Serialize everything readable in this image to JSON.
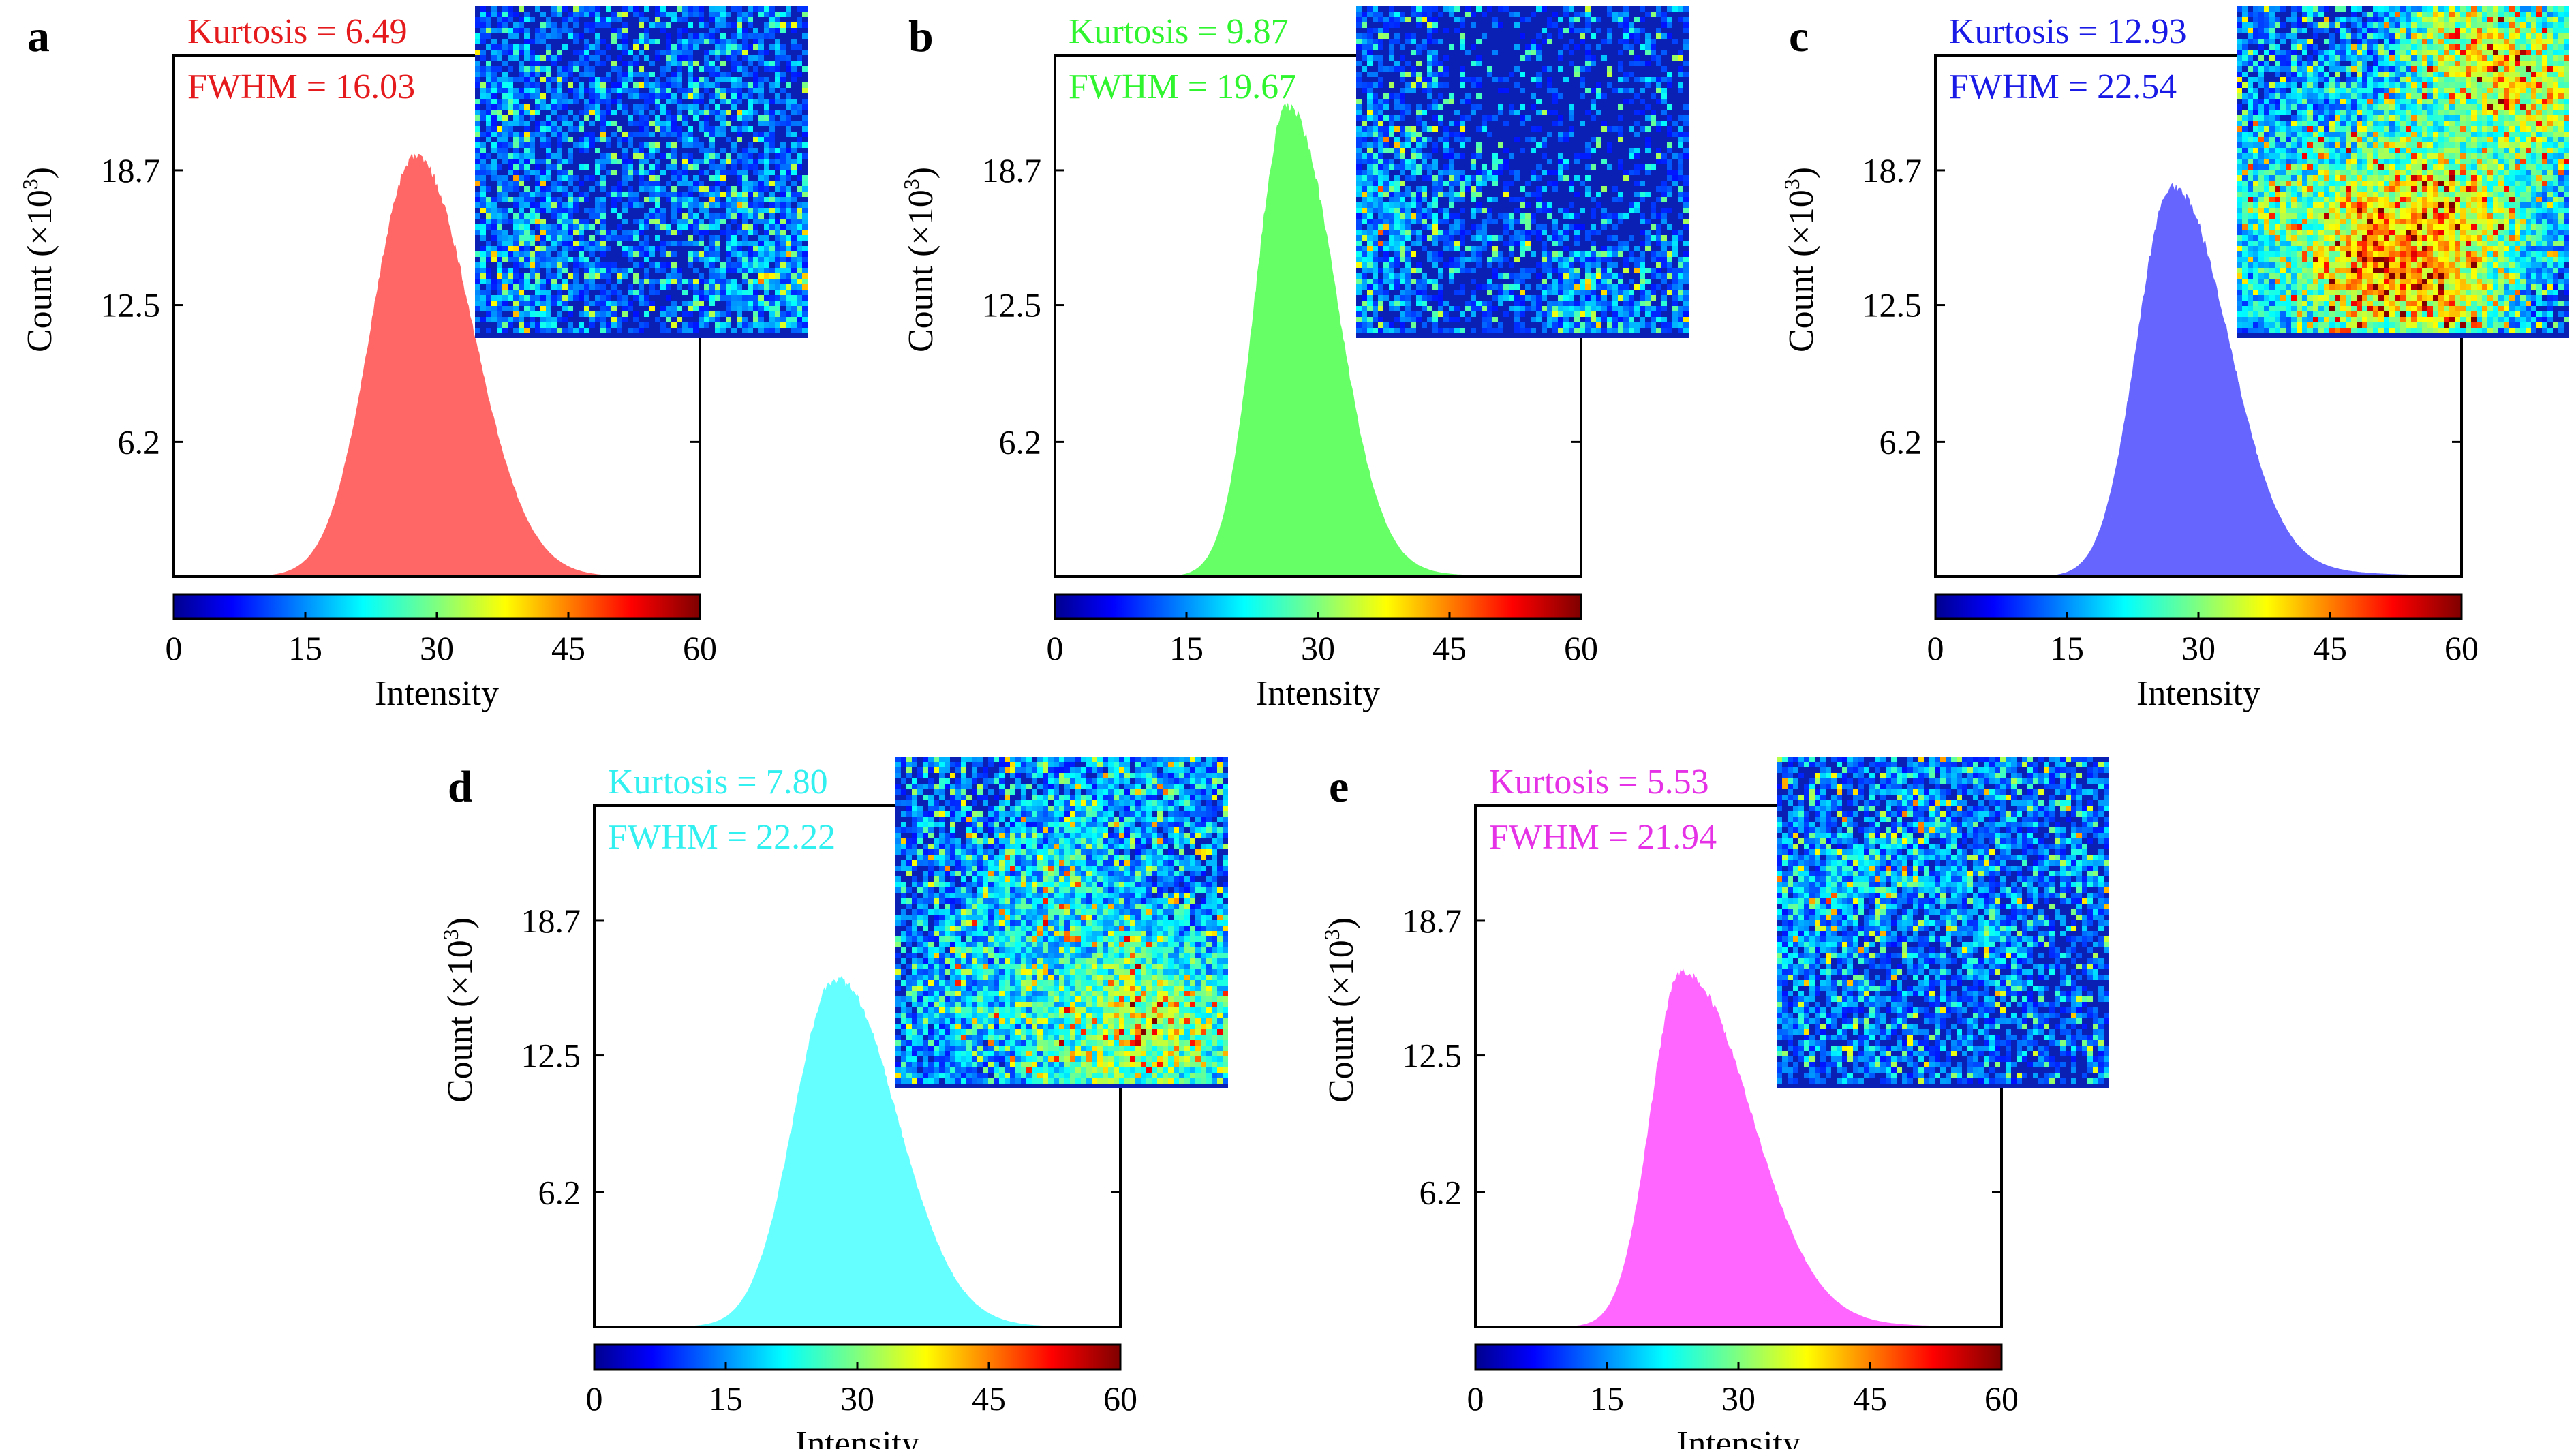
{
  "figure": {
    "x_axis_label": "Intensity",
    "y_axis_label_prefix": "Count (×10",
    "y_axis_label_exp": "3",
    "y_axis_label_suffix": ")",
    "kurtosis_prefix": "Kurtosis = ",
    "fwhm_prefix": "FWHM = ",
    "colorbar_colormap": "jet"
  },
  "chart_data": [
    {
      "type": "area",
      "panel": "a",
      "color": "#ff6666",
      "text_color": "#e41a1c",
      "kurtosis": "6.49",
      "fwhm": "16.03",
      "xlim": [
        0,
        60
      ],
      "ylim": [
        0,
        24
      ],
      "x_ticks": [
        "0",
        "15",
        "30",
        "45",
        "60"
      ],
      "y_ticks": [
        "6.2",
        "12.5",
        "18.7"
      ],
      "peak_x": 27.5,
      "peak_y": 19.3,
      "sigma_left": 4.9,
      "sigma_right": 6.4,
      "tail": 2.4,
      "inset": "speckle-map",
      "inset_level": 0.18
    },
    {
      "type": "area",
      "panel": "b",
      "color": "#66ff66",
      "text_color": "#2ef52e",
      "kurtosis": "9.87",
      "fwhm": "19.67",
      "xlim": [
        0,
        60
      ],
      "ylim": [
        0,
        24
      ],
      "x_ticks": [
        "0",
        "15",
        "30",
        "45",
        "60"
      ],
      "y_ticks": [
        "6.2",
        "12.5",
        "18.7"
      ],
      "peak_x": 26.5,
      "peak_y": 21.6,
      "sigma_left": 3.6,
      "sigma_right": 5.2,
      "tail": 5.0,
      "inset": "speckle-map",
      "inset_level": 0.26
    },
    {
      "type": "area",
      "panel": "c",
      "color": "#6666ff",
      "text_color": "#1a1ae6",
      "kurtosis": "12.93",
      "fwhm": "22.54",
      "xlim": [
        0,
        60
      ],
      "ylim": [
        0,
        24
      ],
      "x_ticks": [
        "0",
        "15",
        "30",
        "45",
        "60"
      ],
      "y_ticks": [
        "6.2",
        "12.5",
        "18.7"
      ],
      "peak_x": 27.0,
      "peak_y": 17.9,
      "sigma_left": 4.0,
      "sigma_right": 6.0,
      "tail": 7.5,
      "inset": "speckle-map",
      "inset_level": 0.42
    },
    {
      "type": "area",
      "panel": "d",
      "color": "#66ffff",
      "text_color": "#33f0f0",
      "kurtosis": "7.80",
      "fwhm": "22.22",
      "xlim": [
        0,
        60
      ],
      "ylim": [
        0,
        24
      ],
      "x_ticks": [
        "0",
        "15",
        "30",
        "45",
        "60"
      ],
      "y_ticks": [
        "6.2",
        "12.5",
        "18.7"
      ],
      "peak_x": 27.5,
      "peak_y": 16.0,
      "sigma_left": 4.7,
      "sigma_right": 6.8,
      "tail": 4.2,
      "inset": "speckle-map",
      "inset_level": 0.32
    },
    {
      "type": "area",
      "panel": "e",
      "color": "#ff66ff",
      "text_color": "#e632e6",
      "kurtosis": "5.53",
      "fwhm": "21.94",
      "xlim": [
        0,
        60
      ],
      "ylim": [
        0,
        24
      ],
      "x_ticks": [
        "0",
        "15",
        "30",
        "45",
        "60"
      ],
      "y_ticks": [
        "6.2",
        "12.5",
        "18.7"
      ],
      "peak_x": 23.5,
      "peak_y": 16.3,
      "sigma_left": 3.5,
      "sigma_right": 7.5,
      "tail": 6.5,
      "inset": "speckle-map",
      "inset_level": 0.27
    }
  ]
}
